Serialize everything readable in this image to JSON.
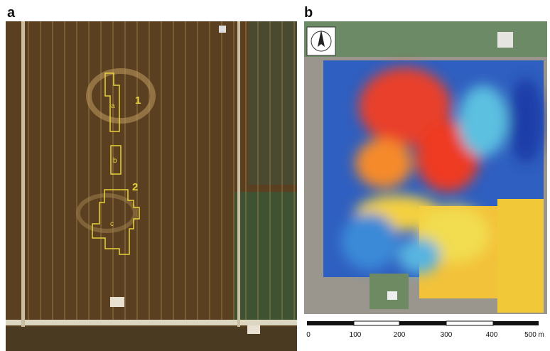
{
  "panels": [
    {
      "label": "a",
      "markers": {
        "site1": "1",
        "site2": "2",
        "area_a": "a",
        "area_b": "b",
        "area_c": "c"
      }
    },
    {
      "label": "b"
    }
  ],
  "scale": {
    "labels": [
      "0",
      "100",
      "200",
      "300",
      "400",
      "500 m"
    ]
  }
}
